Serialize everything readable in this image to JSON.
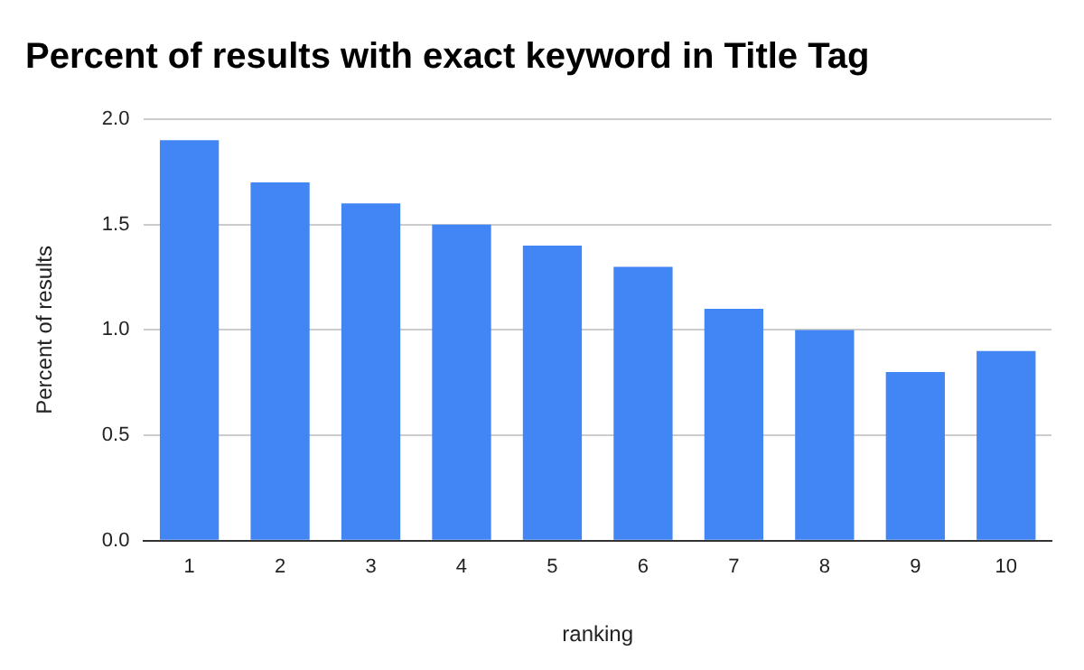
{
  "chart_data": {
    "type": "bar",
    "title": "Percent of results with exact keyword in Title Tag",
    "xlabel": "ranking",
    "ylabel": "Percent of results",
    "categories": [
      "1",
      "2",
      "3",
      "4",
      "5",
      "6",
      "7",
      "8",
      "9",
      "10"
    ],
    "values": [
      1.9,
      1.7,
      1.6,
      1.5,
      1.4,
      1.3,
      1.1,
      1.0,
      0.8,
      0.9
    ],
    "color": "#4285f4",
    "ylim": [
      0,
      2
    ],
    "yticks": [
      {
        "value": 0,
        "label": "0.0"
      },
      {
        "value": 0.5,
        "label": "0.5"
      },
      {
        "value": 1,
        "label": "1.0"
      },
      {
        "value": 1.5,
        "label": "1.5"
      },
      {
        "value": 2,
        "label": "2.0"
      }
    ],
    "grid": "y"
  }
}
